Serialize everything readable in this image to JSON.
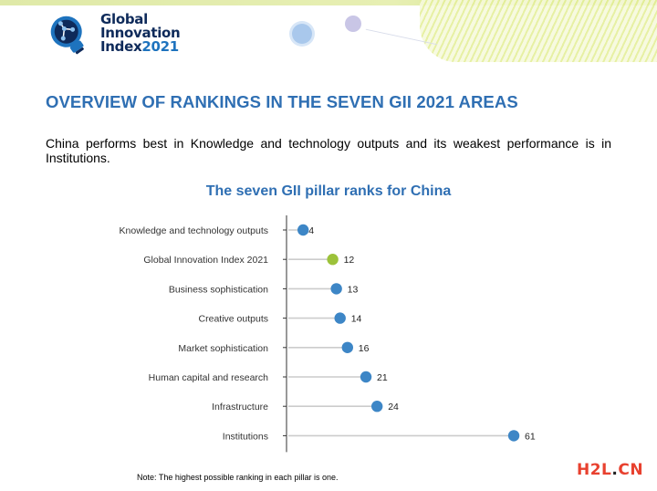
{
  "logo": {
    "line1": "Global",
    "line2": "Innovation",
    "line3_word": "Index",
    "line3_year": "2021",
    "icon": "lightbulb-network-icon"
  },
  "heading": "OVERVIEW OF RANKINGS IN THE SEVEN GII 2021 AREAS",
  "intro": "China performs best in Knowledge and technology outputs and its weakest performance is in Institutions.",
  "note": "Note: The highest possible ranking in each pillar is one.",
  "watermark": {
    "main": "H2L",
    "dot": ".",
    "suffix": "CN"
  },
  "colors": {
    "accent": "#2f6fb3",
    "dot_blue": "#3d86c6",
    "dot_green": "#9cc23a",
    "stem": "#cccccc",
    "axis": "#333333"
  },
  "chart_data": {
    "type": "lollipop",
    "title": "The seven GII pillar ranks for China",
    "categories": [
      "Knowledge and technology outputs",
      "Global Innovation Index 2021",
      "Business sophistication",
      "Creative outputs",
      "Market sophistication",
      "Human capital and research",
      "Infrastructure",
      "Institutions"
    ],
    "values": [
      4,
      12,
      13,
      14,
      16,
      21,
      24,
      61
    ],
    "highlight": "Global Innovation Index 2021",
    "xlim": [
      0,
      65
    ],
    "grid": false,
    "legend": "none"
  }
}
